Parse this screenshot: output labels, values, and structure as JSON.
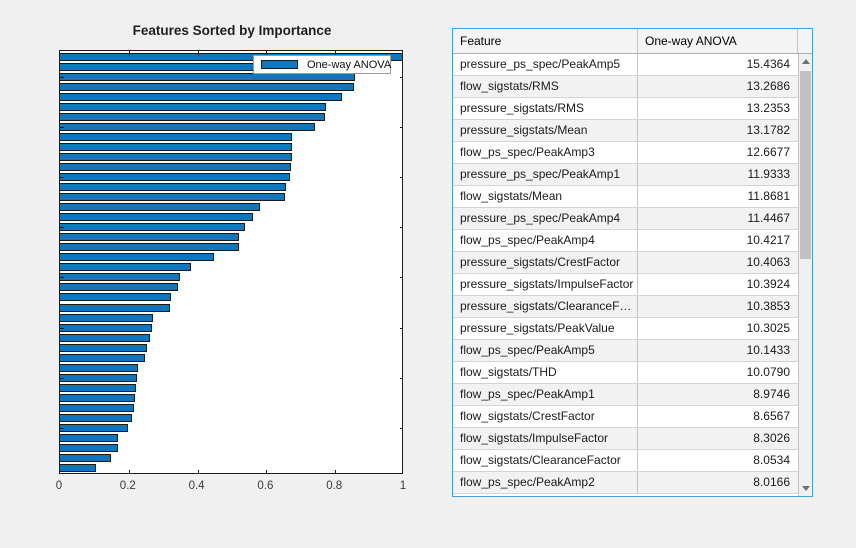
{
  "chart_data": {
    "type": "bar",
    "orientation": "horizontal",
    "title": "Features Sorted by Importance",
    "legend_label": "One-way ANOVA",
    "legend_position": "northeast-inside",
    "xlabel": "",
    "ylabel": "",
    "xlim": [
      0,
      1
    ],
    "xtick_labels": [
      "0",
      "0.2",
      "0.4",
      "0.6",
      "0.8",
      "1"
    ],
    "grid": false,
    "bar_color": "#0072BD",
    "values": [
      1.0,
      0.8596,
      0.8574,
      0.8537,
      0.8206,
      0.7731,
      0.7689,
      0.7415,
      0.6752,
      0.6742,
      0.6733,
      0.6728,
      0.6674,
      0.6571,
      0.653,
      0.5814,
      0.5608,
      0.5379,
      0.5217,
      0.5193,
      0.447,
      0.381,
      0.349,
      0.342,
      0.322,
      0.32,
      0.269,
      0.266,
      0.262,
      0.254,
      0.248,
      0.226,
      0.224,
      0.221,
      0.219,
      0.215,
      0.209,
      0.198,
      0.17,
      0.169,
      0.148,
      0.106
    ]
  },
  "table": {
    "columns": [
      "Feature",
      "One-way ANOVA"
    ],
    "focus_border_color": "#42a0df",
    "rows": [
      {
        "feature": "pressure_ps_spec/PeakAmp5",
        "anova": "15.4364"
      },
      {
        "feature": "flow_sigstats/RMS",
        "anova": "13.2686"
      },
      {
        "feature": "pressure_sigstats/RMS",
        "anova": "13.2353"
      },
      {
        "feature": "pressure_sigstats/Mean",
        "anova": "13.1782"
      },
      {
        "feature": "flow_ps_spec/PeakAmp3",
        "anova": "12.6677"
      },
      {
        "feature": "pressure_ps_spec/PeakAmp1",
        "anova": "11.9333"
      },
      {
        "feature": "flow_sigstats/Mean",
        "anova": "11.8681"
      },
      {
        "feature": "pressure_ps_spec/PeakAmp4",
        "anova": "11.4467"
      },
      {
        "feature": "flow_ps_spec/PeakAmp4",
        "anova": "10.4217"
      },
      {
        "feature": "pressure_sigstats/CrestFactor",
        "anova": "10.4063"
      },
      {
        "feature": "pressure_sigstats/ImpulseFactor",
        "anova": "10.3924"
      },
      {
        "feature": "pressure_sigstats/ClearanceF…",
        "anova": "10.3853"
      },
      {
        "feature": "pressure_sigstats/PeakValue",
        "anova": "10.3025"
      },
      {
        "feature": "flow_ps_spec/PeakAmp5",
        "anova": "10.1433"
      },
      {
        "feature": "flow_sigstats/THD",
        "anova": "10.0790"
      },
      {
        "feature": "flow_ps_spec/PeakAmp1",
        "anova": "8.9746"
      },
      {
        "feature": "flow_sigstats/CrestFactor",
        "anova": "8.6567"
      },
      {
        "feature": "flow_sigstats/ImpulseFactor",
        "anova": "8.3026"
      },
      {
        "feature": "flow_sigstats/ClearanceFactor",
        "anova": "8.0534"
      },
      {
        "feature": "flow_ps_spec/PeakAmp2",
        "anova": "8.0166"
      }
    ]
  }
}
